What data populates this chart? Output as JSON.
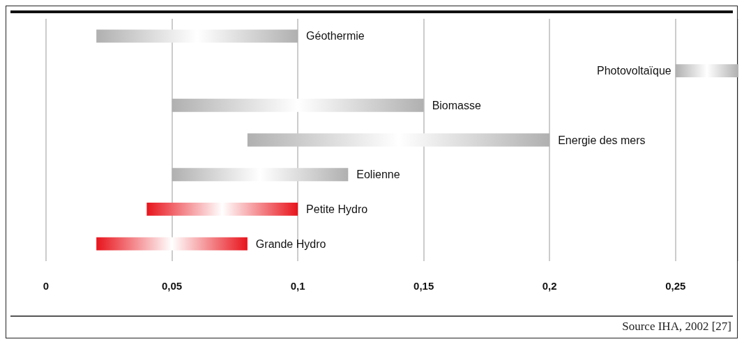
{
  "chart_data": {
    "type": "bar",
    "orientation": "horizontal",
    "categories": [
      "Géothermie",
      "Photovoltaïque",
      "Biomasse",
      "Energie des mers",
      "Eolienne",
      "Petite Hydro",
      "Grande Hydro"
    ],
    "base": [
      0.02,
      0.25,
      0.05,
      0.08,
      0.05,
      0.04,
      0.02
    ],
    "values": [
      0.08,
      0.025,
      0.1,
      0.12,
      0.07,
      0.06,
      0.06
    ],
    "colors": [
      "#b0b0b0",
      "#b0b0b0",
      "#b0b0b0",
      "#b0b0b0",
      "#b0b0b0",
      "#e8141c",
      "#e8141c"
    ],
    "xlim": [
      0,
      0.275
    ],
    "xticks": [
      0,
      {
        "value": 0.05,
        "label": "0,05"
      },
      {
        "value": 0.1,
        "label": "0,1"
      },
      {
        "value": 0.15,
        "label": "0,15"
      },
      {
        "value": 0.2,
        "label": "0,2"
      },
      {
        "value": 0.25,
        "label": "0,25"
      }
    ],
    "grid": "x",
    "annotations": [
      "Source IHA, 2002 [27]"
    ]
  }
}
